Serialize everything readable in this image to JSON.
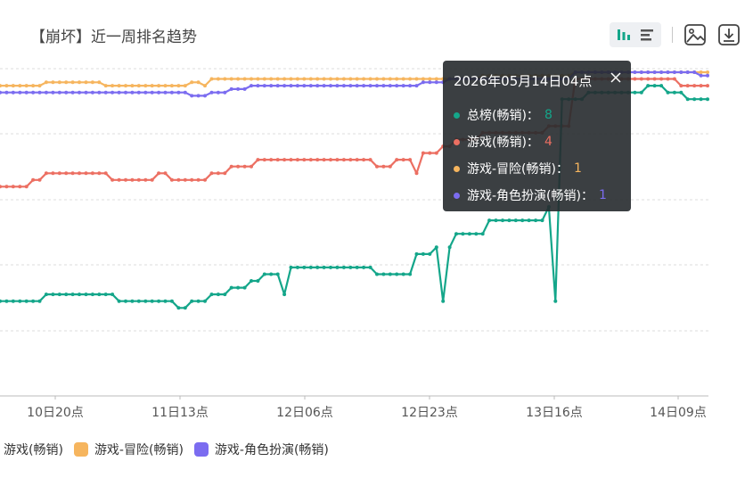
{
  "header": {
    "title": "【崩坏】近一周排名趋势"
  },
  "tooltip": {
    "title": "2026年05月14日04点",
    "rows": [
      {
        "label": "总榜(畅销)：",
        "value": "8",
        "color": "#14a68a"
      },
      {
        "label": "游戏(畅销)：",
        "value": "4",
        "color": "#ec6f62"
      },
      {
        "label": "游戏-冒险(畅销)：",
        "value": "1",
        "color": "#f6b55e"
      },
      {
        "label": "游戏-角色扮演(畅销)：",
        "value": "1",
        "color": "#7b6cf0"
      }
    ]
  },
  "legend": {
    "items": [
      {
        "label": "游戏(畅销)",
        "color": "#ec6f62"
      },
      {
        "label": "游戏-冒险(畅销)",
        "color": "#f6b55e"
      },
      {
        "label": "游戏-角色扮演(畅销)",
        "color": "#7b6cf0"
      }
    ]
  },
  "chart_data": {
    "type": "line",
    "title": "【崩坏】近一周排名趋势",
    "x_tick_labels": [
      "10日20点",
      "11日13点",
      "12日06点",
      "12日23点",
      "13日16点",
      "14日09点"
    ],
    "y_inverted": true,
    "grid": true,
    "legend_position": "bottom-left",
    "series": [
      {
        "name": "总榜(畅销)",
        "color": "#14a68a",
        "values": [
          35,
          35,
          35,
          35,
          35,
          35,
          35,
          34,
          34,
          34,
          34,
          34,
          34,
          34,
          34,
          34,
          34,
          34,
          35,
          35,
          35,
          35,
          35,
          35,
          35,
          35,
          35,
          36,
          36,
          35,
          35,
          35,
          34,
          34,
          34,
          33,
          33,
          33,
          32,
          32,
          31,
          31,
          31,
          34,
          30,
          30,
          30,
          30,
          30,
          30,
          30,
          30,
          30,
          30,
          30,
          30,
          30,
          31,
          31,
          31,
          31,
          31,
          31,
          28,
          28,
          28,
          27,
          35,
          27,
          25,
          25,
          25,
          25,
          25,
          23,
          23,
          23,
          23,
          23,
          23,
          23,
          23,
          23,
          21,
          35,
          5,
          5,
          5,
          5,
          4,
          4,
          4,
          4,
          4,
          4,
          4,
          4,
          4,
          3,
          3,
          3,
          4,
          4,
          4,
          5,
          5,
          5,
          5
        ]
      },
      {
        "name": "游戏(畅销)",
        "color": "#ec6f62",
        "values": [
          18,
          18,
          18,
          18,
          18,
          17,
          17,
          16,
          16,
          16,
          16,
          16,
          16,
          16,
          16,
          16,
          16,
          17,
          17,
          17,
          17,
          17,
          17,
          17,
          16,
          16,
          17,
          17,
          17,
          17,
          17,
          17,
          16,
          16,
          16,
          15,
          15,
          15,
          15,
          14,
          14,
          14,
          14,
          14,
          14,
          14,
          14,
          14,
          14,
          14,
          14,
          14,
          14,
          14,
          14,
          14,
          14,
          15,
          15,
          15,
          14,
          14,
          14,
          16,
          13,
          13,
          13,
          12,
          12,
          11,
          11,
          11,
          11,
          10,
          10,
          10,
          10,
          10,
          10,
          10,
          10,
          10,
          10,
          9,
          9,
          9,
          9,
          2,
          2,
          2,
          2,
          2,
          2,
          2,
          2,
          2,
          2,
          2,
          2,
          2,
          2,
          2,
          2,
          3,
          3,
          3,
          3,
          3
        ]
      },
      {
        "name": "游戏-冒险(畅销)",
        "color": "#f6b55e",
        "values": [
          3,
          3,
          3,
          3,
          3,
          3,
          3,
          2.5,
          2.5,
          2.5,
          2.5,
          2.5,
          2.5,
          2.5,
          2.5,
          2.5,
          3,
          3,
          3,
          3,
          3,
          3,
          3,
          3,
          3,
          3,
          3,
          3,
          3,
          2.5,
          2.5,
          3,
          2,
          2,
          2,
          2,
          2,
          2,
          2,
          2,
          2,
          2,
          2,
          2,
          2,
          2,
          2,
          2,
          2,
          2,
          2,
          2,
          2,
          2,
          2,
          2,
          2,
          2,
          2,
          2,
          2,
          2,
          2,
          2,
          2,
          2,
          2,
          2,
          2,
          2,
          2,
          2,
          2,
          1.5,
          1.5,
          1.5,
          1.5,
          1.5,
          1.5,
          1.5,
          1.5,
          1.5,
          1.5,
          1.5,
          1.5,
          1.5,
          1.5,
          1,
          1,
          1,
          1,
          1,
          1,
          1,
          1,
          1,
          1,
          1,
          1,
          1,
          1,
          1,
          1,
          1,
          1,
          1,
          1,
          1
        ]
      },
      {
        "name": "游戏-角色扮演(畅销)",
        "color": "#7b6cf0",
        "values": [
          4,
          4,
          4,
          4,
          4,
          4,
          4,
          4,
          4,
          4,
          4,
          4,
          4,
          4,
          4,
          4,
          4,
          4,
          4,
          4,
          4,
          4,
          4,
          4,
          4,
          4,
          4,
          4,
          4,
          4.5,
          4.5,
          4.5,
          4,
          4,
          4,
          3.5,
          3.5,
          3.5,
          3,
          3,
          3,
          3,
          3,
          3,
          3,
          3,
          3,
          3,
          3,
          3,
          3,
          3,
          3,
          3,
          3,
          3,
          3,
          3,
          3,
          3,
          3,
          3,
          3,
          3,
          2.5,
          2.5,
          2.5,
          2.5,
          2,
          2,
          2,
          2,
          2,
          2,
          2,
          2,
          2,
          2,
          2,
          2,
          2,
          2,
          2,
          2,
          2,
          2,
          2,
          1,
          1,
          1,
          1,
          1,
          1,
          1,
          1,
          1,
          1,
          1,
          1,
          1,
          1,
          1,
          1,
          1,
          1,
          1,
          1.5,
          1.5
        ]
      }
    ]
  }
}
